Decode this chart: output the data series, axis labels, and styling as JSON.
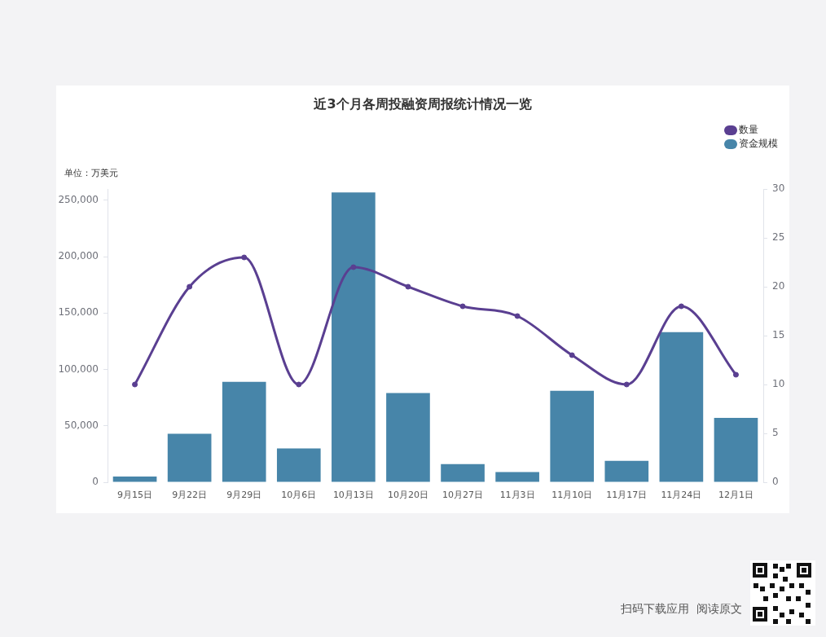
{
  "chart_data": {
    "type": "bar",
    "title": "近3个月各周投融资周报统计情况一览",
    "ylabel": "单位：万美元",
    "categories": [
      "9月15日",
      "9月22日",
      "9月29日",
      "10月6日",
      "10月13日",
      "10月20日",
      "10月27日",
      "11月3日",
      "11月10日",
      "11月17日",
      "11月24日",
      "12月1日"
    ],
    "series": [
      {
        "name": "数量",
        "type": "line",
        "axis": "y2",
        "color": "#5a3f91",
        "values": [
          10,
          20,
          23,
          10,
          22,
          20,
          18,
          17,
          13,
          10,
          18,
          11
        ]
      },
      {
        "name": "资金规模",
        "color": "#4785a9",
        "values": [
          5000,
          43000,
          89000,
          30000,
          257000,
          79000,
          16000,
          9000,
          81000,
          19000,
          133000,
          57000
        ]
      }
    ],
    "ylim": [
      0,
      260000
    ],
    "yticks": [
      0,
      {
        "value": 50000,
        "label": "50,000"
      },
      {
        "value": 100000,
        "label": "100,000"
      },
      {
        "value": 150000,
        "label": "150,000"
      },
      {
        "value": 200000,
        "label": "200,000"
      },
      {
        "value": 250000,
        "label": "250,000"
      }
    ],
    "y2lim": [
      0,
      30
    ],
    "y2ticks": [
      0,
      5,
      10,
      15,
      20,
      25,
      30
    ],
    "grid": false,
    "legend": "top right",
    "marker": "circle",
    "annotations": [
      "扫码下载应用  阅读原文"
    ]
  }
}
